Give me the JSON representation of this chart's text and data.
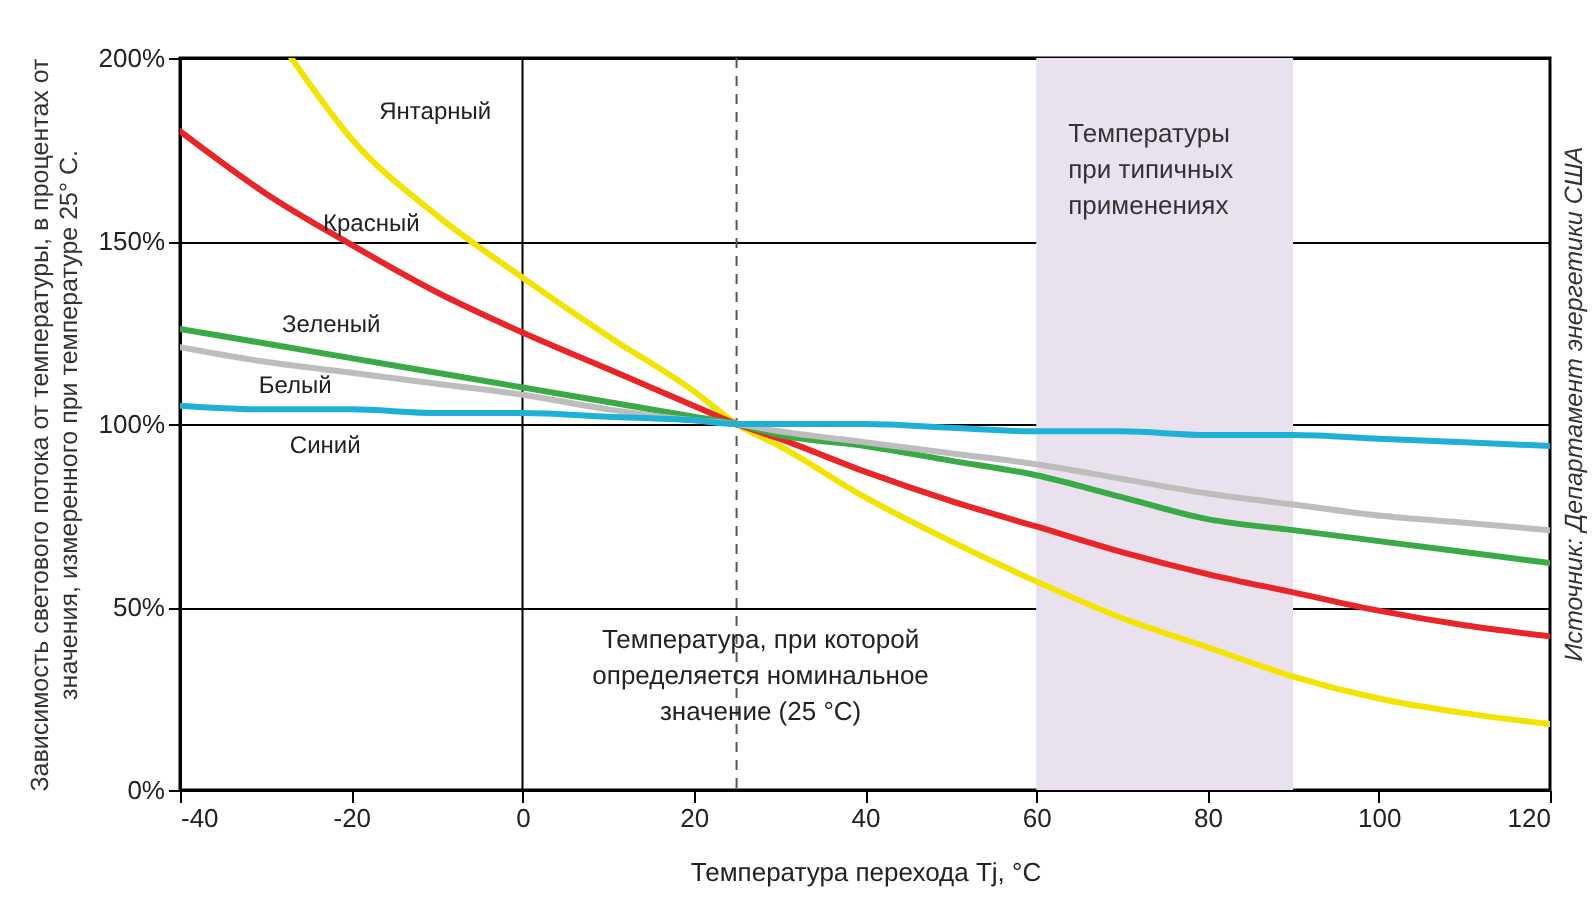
{
  "chart_data": {
    "type": "line",
    "xlabel": "Температура перехода Tj, °C",
    "ylabel": "Зависимость светового потока от температуры, в процентах от значения, измеренного при температуре 25° С.",
    "x": [
      -40,
      -30,
      -20,
      -10,
      0,
      10,
      20,
      25,
      30,
      40,
      50,
      60,
      70,
      80,
      90,
      100,
      110,
      120
    ],
    "series": [
      {
        "name": "Янтарный",
        "color": "#f2e400",
        "x": [
          -27,
          -20,
          -10,
          0,
          10,
          20,
          25,
          30,
          40,
          50,
          60,
          70,
          80,
          90,
          100,
          110,
          120
        ],
        "values": [
          200,
          178,
          157,
          140,
          124,
          109,
          100,
          94,
          80,
          68,
          57,
          47,
          39,
          31,
          25,
          21,
          18
        ]
      },
      {
        "name": "Красный",
        "color": "#e8262a",
        "values": [
          180,
          163,
          149,
          136,
          125,
          115,
          105,
          100,
          96,
          87,
          79,
          72,
          65,
          59,
          54,
          49,
          45,
          42
        ]
      },
      {
        "name": "Зеленый",
        "color": "#3aaa47",
        "values": [
          126,
          122,
          118,
          114,
          110,
          106,
          102,
          100,
          97,
          94,
          90,
          86,
          80,
          74,
          71,
          68,
          65,
          62
        ]
      },
      {
        "name": "Белый",
        "color": "#bdbdbd",
        "values": [
          121,
          117,
          114,
          111,
          108,
          104,
          101,
          100,
          98,
          95,
          92,
          89,
          85,
          81,
          78,
          75,
          73,
          71
        ]
      },
      {
        "name": "Синий",
        "color": "#1fb0d8",
        "values": [
          105,
          104,
          104,
          103,
          103,
          102,
          101,
          100,
          100,
          100,
          99,
          98,
          98,
          97,
          97,
          96,
          95,
          94
        ]
      }
    ],
    "xlim": [
      -40,
      120
    ],
    "xticks": [
      -40,
      -20,
      0,
      20,
      40,
      60,
      80,
      100,
      120
    ],
    "ylim": [
      0,
      200
    ],
    "yticks": [
      {
        "value": 0,
        "label": "0%"
      },
      {
        "value": 50,
        "label": "50%"
      },
      {
        "value": 100,
        "label": "100%"
      },
      {
        "value": 150,
        "label": "150%"
      },
      {
        "value": 200,
        "label": "200%"
      }
    ],
    "grid": "y",
    "marker": "none",
    "line_style": "solid",
    "ref_lines": [
      {
        "axis": "x",
        "value": 0,
        "line_style": "solid",
        "color": "#000000"
      },
      {
        "axis": "x",
        "value": 25,
        "line_style": "dashed",
        "color": "#555555",
        "label": "Температура, при которой определяется номинальное значение (25 °C)"
      }
    ],
    "bands": [
      {
        "axis": "x",
        "from": 60,
        "to": 90,
        "color": "#e9e1ee",
        "label": "Температуры при типичных применениях"
      }
    ],
    "annotations": [
      "Источник: Департамент энергетики США"
    ]
  }
}
